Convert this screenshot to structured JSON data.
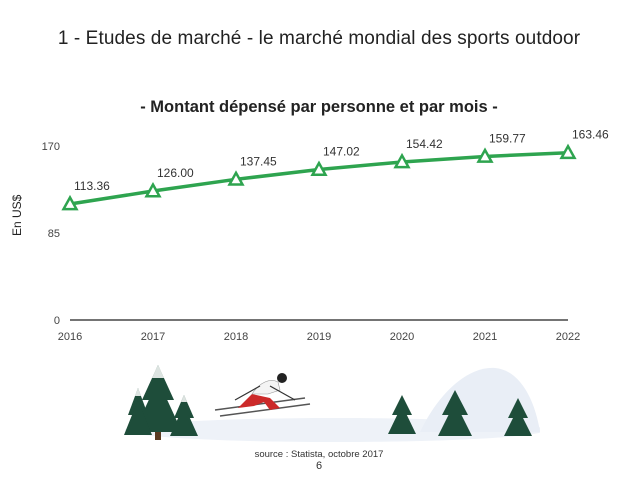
{
  "slide": {
    "title": "1 - Etudes de marché - le marché mondial des sports outdoor",
    "source": "source : Statista, octobre 2017",
    "page_number": "6"
  },
  "colors": {
    "line": "#2ea44f",
    "axis": "#222222",
    "tree": "#1e4d3a",
    "snow": "#f2f5fa",
    "jacket": "#cc2a2a"
  },
  "illustration": {
    "icon": "skier-winter-scene-icon"
  },
  "chart_data": {
    "type": "line",
    "title": "- Montant dépensé par personne et par mois -",
    "xlabel": "",
    "ylabel": "En US$",
    "ylim": [
      0,
      170
    ],
    "yticks": [
      "0",
      "85",
      "170"
    ],
    "x": [
      "2016",
      "2017",
      "2018",
      "2019",
      "2020",
      "2021",
      "2022"
    ],
    "series": [
      {
        "name": "Montant dépensé",
        "values": [
          113.36,
          126.0,
          137.45,
          147.02,
          154.42,
          159.77,
          163.46
        ],
        "labels": [
          "113.36",
          "126.00",
          "137.45",
          "147.02",
          "154.42",
          "159.77",
          "163.46"
        ]
      }
    ],
    "grid": false,
    "marker": "triangle"
  }
}
